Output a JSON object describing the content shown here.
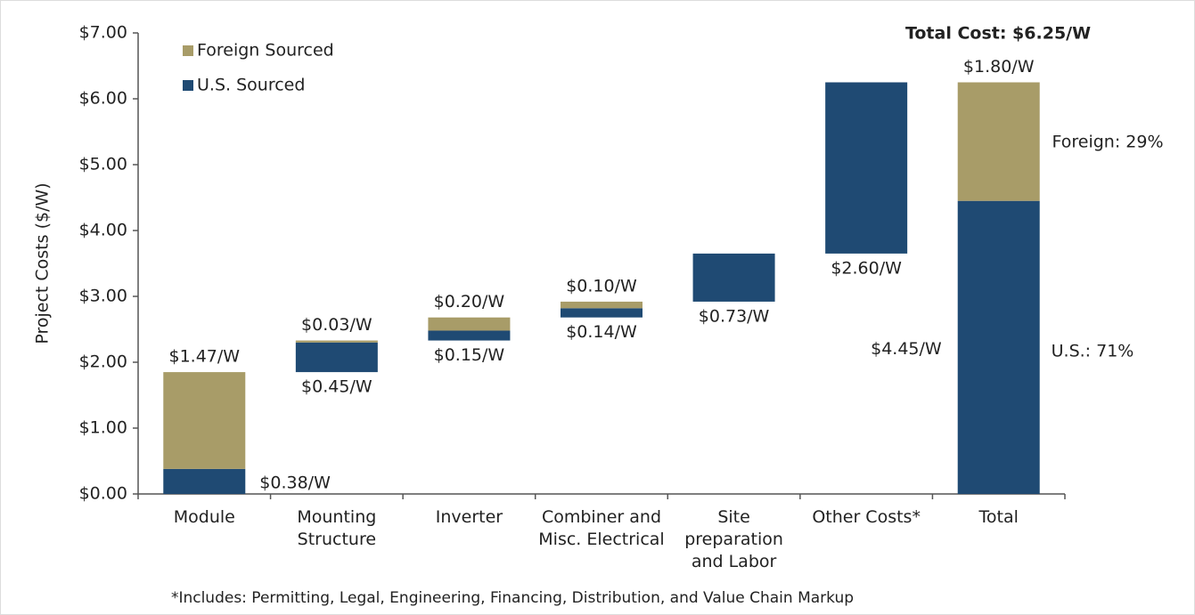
{
  "chart_data": {
    "type": "waterfall",
    "y_label": "Project Costs ($/W)",
    "categories": [
      [
        "Module"
      ],
      [
        "Mounting",
        "Structure"
      ],
      [
        "Inverter"
      ],
      [
        "Combiner and",
        "Misc. Electrical"
      ],
      [
        "Site",
        "preparation",
        "and Labor"
      ],
      [
        "Other Costs*"
      ],
      [
        "Total"
      ]
    ],
    "series": [
      {
        "name": "Foreign Sourced",
        "color": "#a89c68",
        "values": [
          1.47,
          0.03,
          0.2,
          0.1,
          null,
          null,
          1.8
        ],
        "value_labels": [
          "$1.47/W",
          "$0.03/W",
          "$0.20/W",
          "$0.10/W",
          null,
          null,
          "$1.80/W"
        ]
      },
      {
        "name": "U.S. Sourced",
        "color": "#1f4a73",
        "values": [
          0.38,
          0.45,
          0.15,
          0.14,
          0.73,
          2.6,
          4.45
        ],
        "value_labels": [
          "$0.38/W",
          "$0.45/W",
          "$0.15/W",
          "$0.14/W",
          "$0.73/W",
          "$2.60/W",
          "$4.45/W"
        ]
      }
    ],
    "ylim": [
      0,
      7
    ],
    "yticks": [
      {
        "value": 0,
        "label": "$0.00"
      },
      {
        "value": 1,
        "label": "$1.00"
      },
      {
        "value": 2,
        "label": "$2.00"
      },
      {
        "value": 3,
        "label": "$3.00"
      },
      {
        "value": 4,
        "label": "$4.00"
      },
      {
        "value": 5,
        "label": "$5.00"
      },
      {
        "value": 6,
        "label": "$6.00"
      },
      {
        "value": 7,
        "label": "$7.00"
      }
    ],
    "legend": "upper left",
    "annotations": [
      "Total Cost: $6.25/W",
      "Foreign: 29%",
      "U.S.: 71%"
    ],
    "footnote": "*Includes: Permitting, Legal, Engineering, Financing, Distribution, and Value Chain Markup"
  }
}
